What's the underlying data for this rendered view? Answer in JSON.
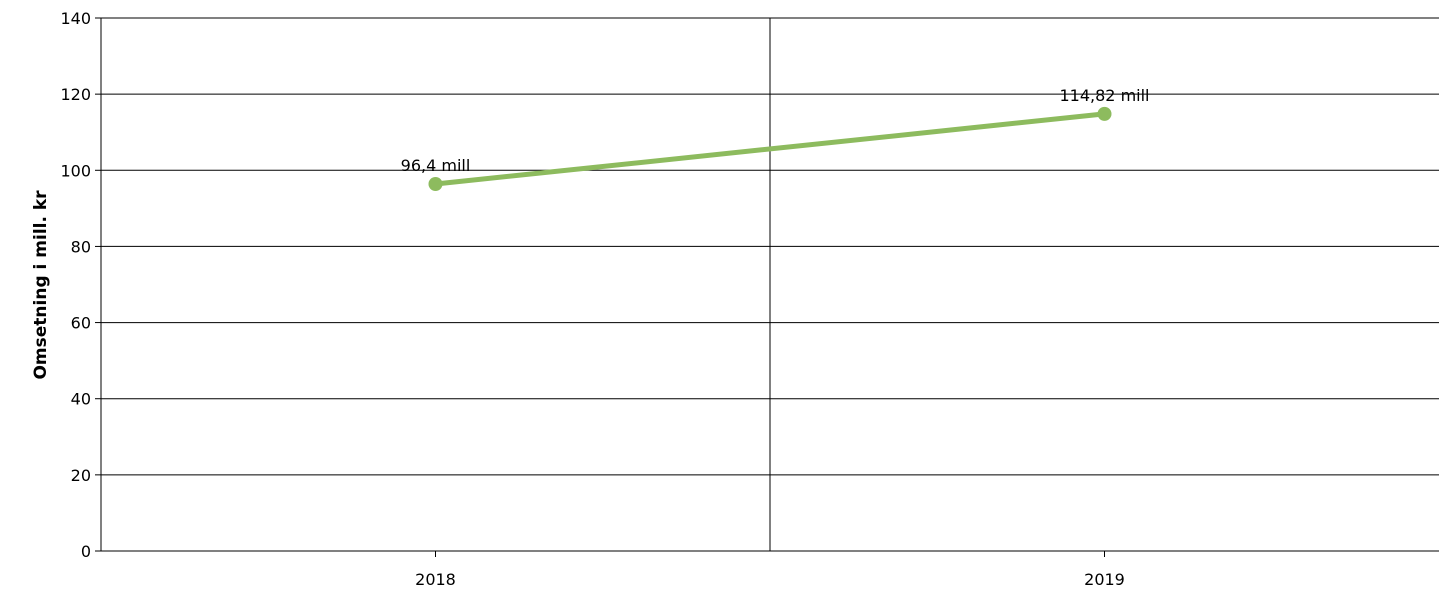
{
  "chart_data": {
    "type": "line",
    "title": "",
    "xlabel": "",
    "ylabel": "Omsetning i mill. kr",
    "categories": [
      "2018",
      "2019"
    ],
    "series": [
      {
        "values": [
          96.4,
          114.82
        ],
        "data_labels": [
          "96,4 mill",
          "114,82 mill"
        ],
        "color": "#8dbb5e"
      }
    ],
    "ylim": [
      0,
      140
    ],
    "yticks": [
      0,
      20,
      40,
      60,
      80,
      100,
      120,
      140
    ],
    "yticks_labels": [
      "0",
      "20",
      "40",
      "60",
      "80",
      "100",
      "120",
      "140"
    ],
    "grid": true,
    "legend": "none"
  }
}
